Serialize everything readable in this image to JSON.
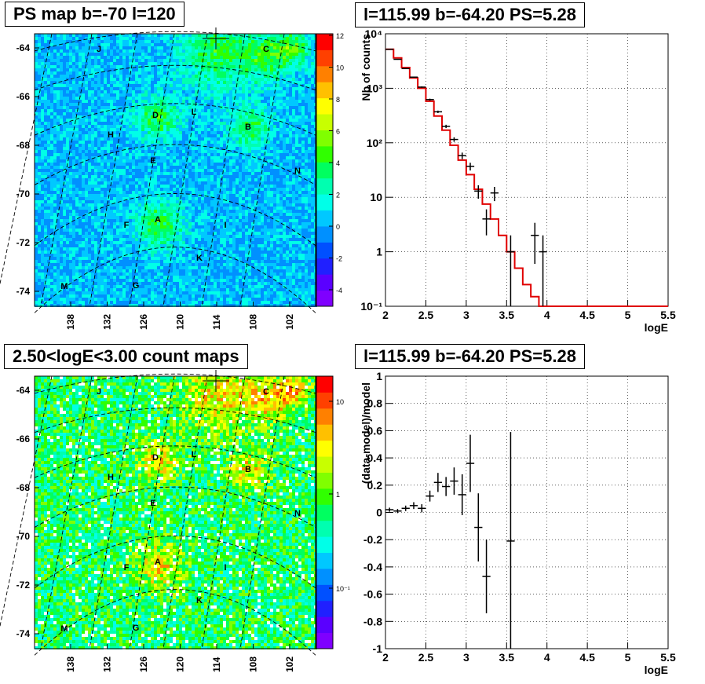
{
  "panels": {
    "ps_map": {
      "title": "PS map b=-70 l=120",
      "xticks": [
        "138",
        "132",
        "126",
        "120",
        "114",
        "108",
        "102"
      ],
      "yticks": [
        "-64",
        "-66",
        "-68",
        "-70",
        "-72",
        "-74"
      ],
      "colorbar_ticks": [
        "12",
        "10",
        "8",
        "6",
        "4",
        "2",
        "0",
        "-2",
        "-4"
      ],
      "labels": [
        "J",
        "C",
        "D",
        "L",
        "B",
        "H",
        "E",
        "N",
        "F",
        "A",
        "I",
        "K",
        "M",
        "G"
      ]
    },
    "spectrum": {
      "title": "l=115.99 b=-64.20 PS=5.28"
    },
    "count_map": {
      "title": "2.50<logE<3.00 count maps",
      "xticks": [
        "138",
        "132",
        "126",
        "120",
        "114",
        "108",
        "102"
      ],
      "yticks": [
        "-64",
        "-66",
        "-68",
        "-70",
        "-72",
        "-74"
      ],
      "colorbar_ticks": [
        "10",
        "1",
        "10⁻¹"
      ],
      "labels": [
        "J",
        "C",
        "D",
        "L",
        "B",
        "H",
        "E",
        "N",
        "F",
        "A",
        "I",
        "K",
        "M",
        "G"
      ]
    },
    "residual": {
      "title": "l=115.99 b=-64.20 PS=5.28"
    }
  },
  "chart_data": [
    {
      "type": "heatmap",
      "title": "PS map b=-70 l=120",
      "xlabel": "",
      "ylabel": "",
      "x_ticks": [
        138,
        132,
        126,
        120,
        114,
        108,
        102
      ],
      "y_ticks": [
        -64,
        -66,
        -68,
        -70,
        -72,
        -74
      ],
      "z_range": [
        -5,
        12
      ],
      "colorbar_ticks": [
        12,
        10,
        8,
        6,
        4,
        2,
        0,
        -2,
        -4
      ],
      "annotations": [
        "J",
        "C",
        "D",
        "L",
        "B",
        "H",
        "E",
        "N",
        "F",
        "A",
        "I",
        "K",
        "M",
        "G"
      ]
    },
    {
      "type": "line",
      "title": "l=115.99 b=-64.20 PS=5.28",
      "xlabel": "logE",
      "ylabel": "Nb of counts",
      "xlim": [
        2,
        5.5
      ],
      "ylim": [
        0.1,
        10000
      ],
      "yscale": "log",
      "xticks": [
        2,
        2.5,
        3,
        3.5,
        4,
        4.5,
        5,
        5.5
      ],
      "yticks": [
        "10⁻¹",
        "1",
        "10",
        "10²",
        "10³",
        "10⁴"
      ],
      "grid": true,
      "series": [
        {
          "kind": "data_points",
          "color": "#000000",
          "x": [
            2.05,
            2.15,
            2.25,
            2.35,
            2.45,
            2.55,
            2.65,
            2.75,
            2.85,
            2.95,
            3.05,
            3.15,
            3.25,
            3.35,
            3.55,
            3.85,
            3.95
          ],
          "y": [
            5200,
            3400,
            2300,
            1600,
            1050,
            620,
            370,
            200,
            115,
            58,
            37,
            13,
            4,
            12,
            1,
            2,
            1
          ],
          "yerr_low": [
            72,
            58,
            48,
            40,
            32,
            25,
            19,
            14,
            11,
            8,
            6,
            3.6,
            2,
            3.5,
            1,
            1.4,
            1
          ],
          "yerr_high": [
            72,
            58,
            48,
            40,
            32,
            25,
            19,
            14,
            11,
            8,
            6,
            3.6,
            2,
            3.5,
            1,
            1.4,
            1
          ]
        },
        {
          "kind": "model_histogram",
          "color": "#e00000",
          "bin_edges": [
            2.0,
            2.1,
            2.2,
            2.3,
            2.4,
            2.5,
            2.6,
            2.7,
            2.8,
            2.9,
            3.0,
            3.1,
            3.2,
            3.3,
            3.4,
            3.5,
            3.6,
            3.7,
            3.8,
            3.9,
            4.0,
            5.5
          ],
          "values": [
            5200,
            3600,
            2400,
            1550,
            1000,
            580,
            310,
            170,
            90,
            48,
            26,
            14,
            7.5,
            4,
            2,
            1,
            0.5,
            0.25,
            0.15,
            0.1,
            0.1
          ]
        }
      ]
    },
    {
      "type": "heatmap",
      "title": "2.50<logE<3.00 count maps",
      "xlabel": "",
      "ylabel": "",
      "x_ticks": [
        138,
        132,
        126,
        120,
        114,
        108,
        102
      ],
      "y_ticks": [
        -64,
        -66,
        -68,
        -70,
        -72,
        -74
      ],
      "z_scale": "log",
      "colorbar_ticks": [
        "10",
        "1",
        "10⁻¹"
      ],
      "annotations": [
        "J",
        "C",
        "D",
        "L",
        "B",
        "H",
        "E",
        "N",
        "F",
        "A",
        "I",
        "K",
        "M",
        "G"
      ]
    },
    {
      "type": "scatter",
      "title": "l=115.99 b=-64.20 PS=5.28",
      "xlabel": "logE",
      "ylabel": "(data-model)/model",
      "xlim": [
        2,
        5.5
      ],
      "ylim": [
        -1,
        1
      ],
      "xticks": [
        2,
        2.5,
        3,
        3.5,
        4,
        4.5,
        5,
        5.5
      ],
      "yticks": [
        -1,
        -0.8,
        -0.6,
        -0.4,
        -0.2,
        0,
        0.2,
        0.4,
        0.6,
        0.8,
        1
      ],
      "grid": true,
      "series": [
        {
          "kind": "data_points",
          "color": "#000000",
          "x": [
            2.05,
            2.15,
            2.25,
            2.35,
            2.45,
            2.55,
            2.65,
            2.75,
            2.85,
            2.95,
            3.05,
            3.15,
            3.25,
            3.55
          ],
          "y": [
            0.02,
            0.01,
            0.03,
            0.05,
            0.03,
            0.12,
            0.22,
            0.19,
            0.23,
            0.13,
            0.36,
            -0.11,
            -0.47,
            -0.21
          ],
          "yerr": [
            0.015,
            0.015,
            0.02,
            0.025,
            0.03,
            0.04,
            0.07,
            0.07,
            0.1,
            0.15,
            0.21,
            0.25,
            0.27,
            0.8
          ]
        }
      ]
    }
  ]
}
